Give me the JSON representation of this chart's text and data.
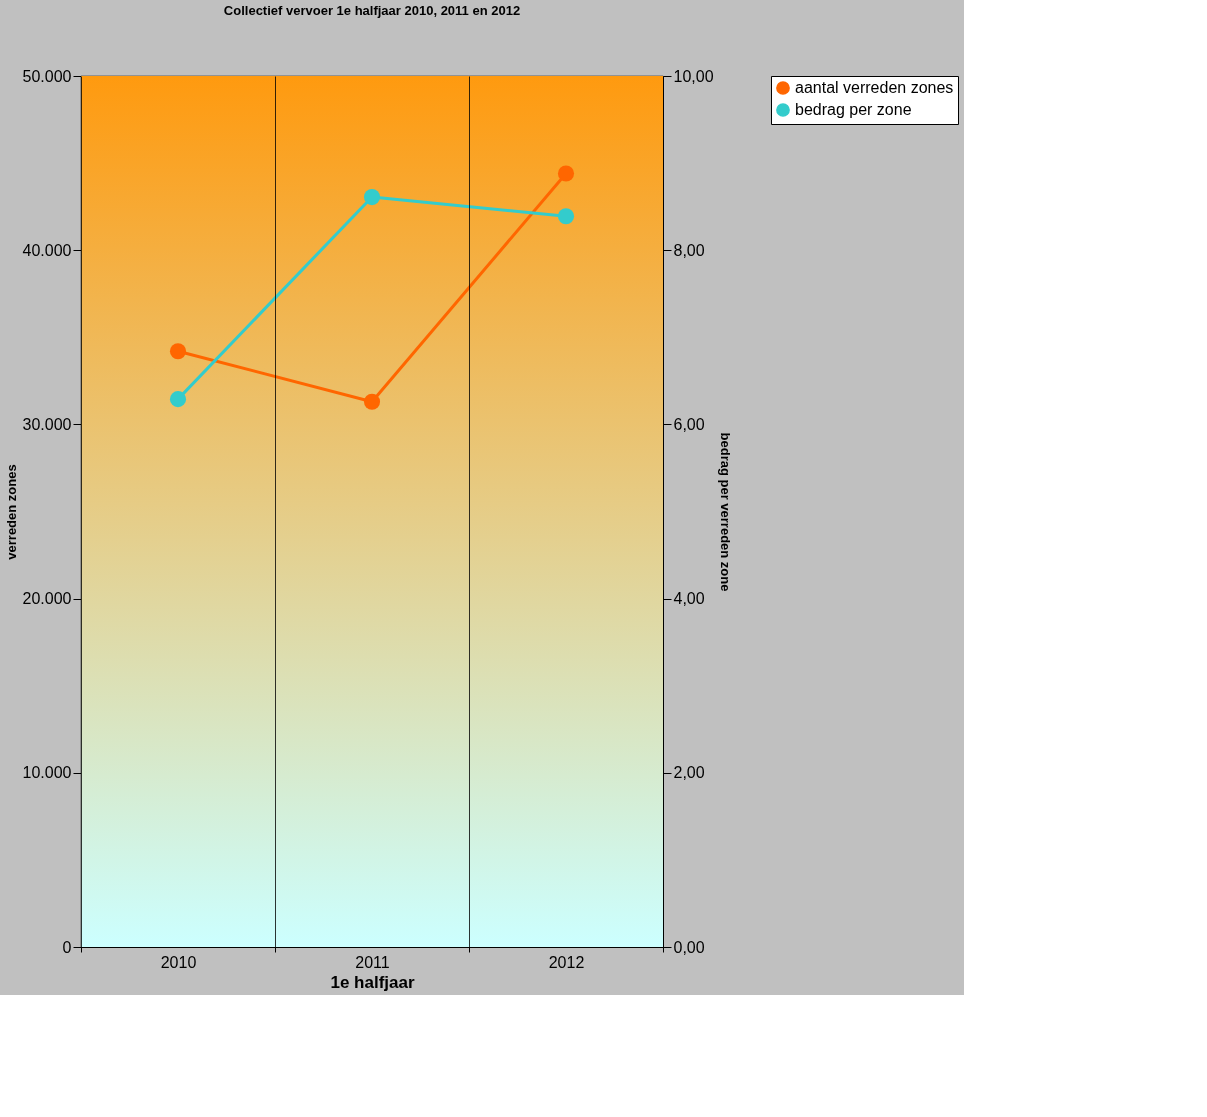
{
  "chart_data": {
    "type": "line",
    "title": "Collectief vervoer 1e halfjaar 2010, 2011 en 2012",
    "xlabel": "1e halfjaar",
    "ylabel": "verreden zones",
    "y2label": "bedrag per verreden zone",
    "categories": [
      "2010",
      "2011",
      "2012"
    ],
    "series": [
      {
        "name": "aantal verreden zones",
        "color": "#ff6600",
        "values": [
          34200,
          31300,
          44400
        ]
      },
      {
        "name": "bedrag per zone",
        "color": "#33cccc",
        "values": [
          6.29,
          8.61,
          8.39
        ],
        "axis": "y2"
      }
    ],
    "ylim": [
      0,
      50000
    ],
    "yticks": [
      0,
      {
        "value": 10000,
        "label": "10.000"
      },
      {
        "value": 20000,
        "label": "20.000"
      },
      {
        "value": 30000,
        "label": "30.000"
      },
      {
        "value": 40000,
        "label": "40.000"
      },
      {
        "value": 50000,
        "label": "50.000"
      }
    ],
    "y2lim": [
      0,
      10
    ],
    "y2ticks": [
      {
        "value": 0,
        "label": "0,00"
      },
      {
        "value": 2,
        "label": "2,00"
      },
      {
        "value": 4,
        "label": "4,00"
      },
      {
        "value": 6,
        "label": "6,00"
      },
      {
        "value": 8,
        "label": "8,00"
      },
      {
        "value": 10,
        "label": "10,00"
      }
    ],
    "grid": "x",
    "legend": "right",
    "marker": "circle",
    "line_style": "solid"
  }
}
